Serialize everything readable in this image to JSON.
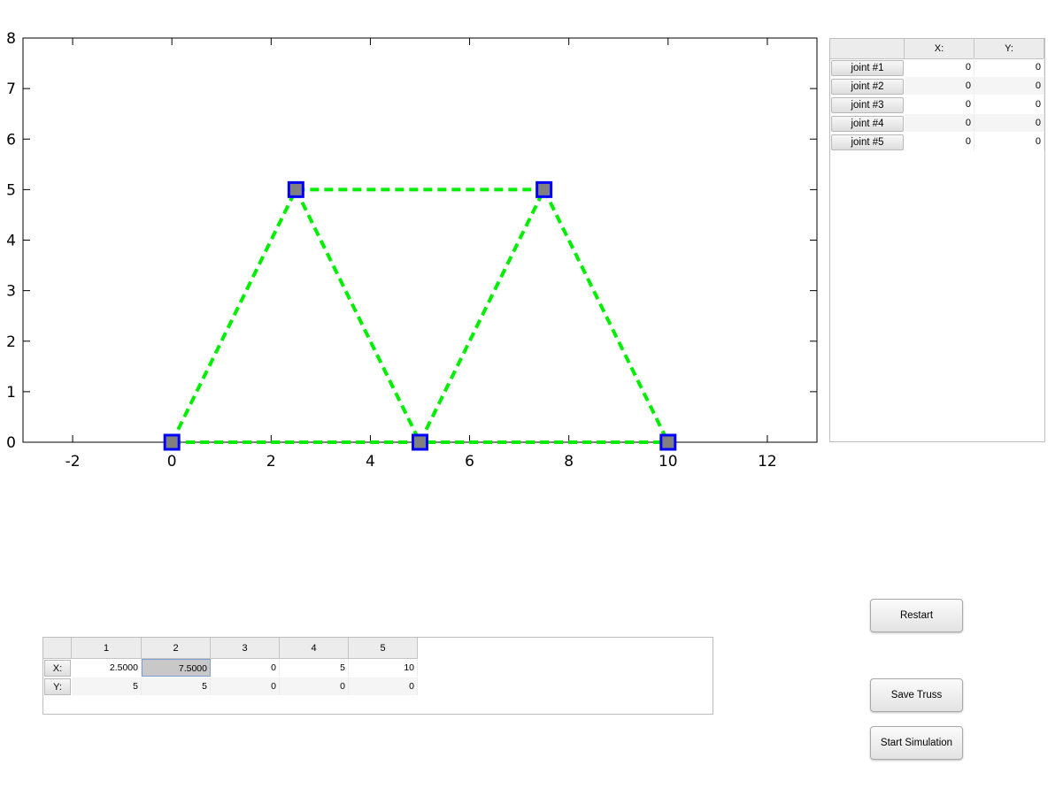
{
  "chart_data": {
    "type": "scatter",
    "xlim": [
      -3,
      13
    ],
    "ylim": [
      0,
      8
    ],
    "x_ticks": [
      "-2",
      "0",
      "2",
      "4",
      "6",
      "8",
      "10",
      "12"
    ],
    "x_tick_values": [
      -2,
      0,
      2,
      4,
      6,
      8,
      10,
      12
    ],
    "y_ticks": [
      "0",
      "1",
      "2",
      "3",
      "4",
      "5",
      "6",
      "7",
      "8"
    ],
    "y_tick_values": [
      0,
      1,
      2,
      3,
      4,
      5,
      6,
      7,
      8
    ],
    "joints": [
      {
        "x": 0,
        "y": 0
      },
      {
        "x": 2.5,
        "y": 5
      },
      {
        "x": 5,
        "y": 0
      },
      {
        "x": 7.5,
        "y": 5
      },
      {
        "x": 10,
        "y": 0
      }
    ],
    "members": [
      [
        {
          "x": 0,
          "y": 0
        },
        {
          "x": 2.5,
          "y": 5
        }
      ],
      [
        {
          "x": 2.5,
          "y": 5
        },
        {
          "x": 7.5,
          "y": 5
        }
      ],
      [
        {
          "x": 2.5,
          "y": 5
        },
        {
          "x": 5,
          "y": 0
        }
      ],
      [
        {
          "x": 5,
          "y": 0
        },
        {
          "x": 7.5,
          "y": 5
        }
      ],
      [
        {
          "x": 7.5,
          "y": 5
        },
        {
          "x": 10,
          "y": 0
        }
      ],
      [
        {
          "x": 0,
          "y": 0
        },
        {
          "x": 10,
          "y": 0
        }
      ]
    ],
    "member_color": "#00ee00",
    "member_style": "dashed",
    "marker_fill": "#808080",
    "marker_edge": "#0000ff",
    "grid": false
  },
  "joint_table": {
    "headers": [
      "X:",
      "Y:"
    ],
    "rows": [
      {
        "label": "joint #1",
        "x": "0",
        "y": "0"
      },
      {
        "label": "joint #2",
        "x": "0",
        "y": "0"
      },
      {
        "label": "joint #3",
        "x": "0",
        "y": "0"
      },
      {
        "label": "joint #4",
        "x": "0",
        "y": "0"
      },
      {
        "label": "joint #5",
        "x": "0",
        "y": "0"
      }
    ]
  },
  "point_table": {
    "columns": [
      "1",
      "2",
      "3",
      "4",
      "5"
    ],
    "row_labels": [
      "X:",
      "Y:"
    ],
    "x_values": [
      "2.5000",
      "7.5000",
      "0",
      "5",
      "10"
    ],
    "y_values": [
      "5",
      "5",
      "0",
      "0",
      "0"
    ],
    "selected_cell": "x_values.1"
  },
  "buttons": {
    "restart": "Restart",
    "save_truss": "Save Truss",
    "start_simulation": "Start Simulation"
  }
}
